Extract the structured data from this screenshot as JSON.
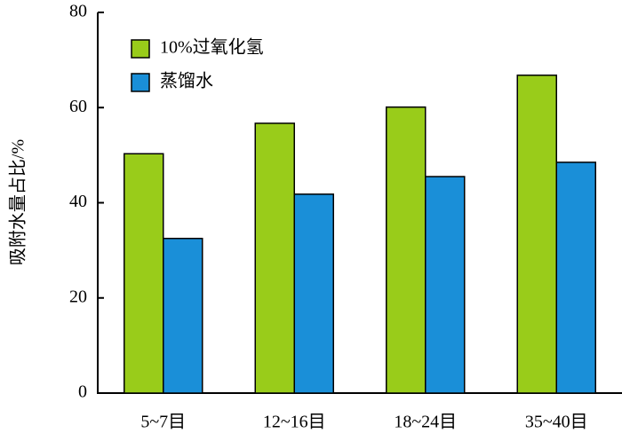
{
  "chart_data": {
    "type": "bar",
    "y_label": "吸附水量占比/%",
    "categories": [
      "5~7目",
      "12~16目",
      "18~24目",
      "35~40目"
    ],
    "series": [
      {
        "name": "10%过氧化氢",
        "color": "#99cc1a",
        "values": [
          50.3,
          56.7,
          60.1,
          66.8
        ]
      },
      {
        "name": "蒸馏水",
        "color": "#1a8fd8",
        "values": [
          32.5,
          41.8,
          45.5,
          48.5
        ]
      }
    ],
    "ylim": [
      0,
      80
    ],
    "yticks": [
      0,
      20,
      40,
      60,
      80
    ],
    "grid": false,
    "legend": "upper-left"
  }
}
